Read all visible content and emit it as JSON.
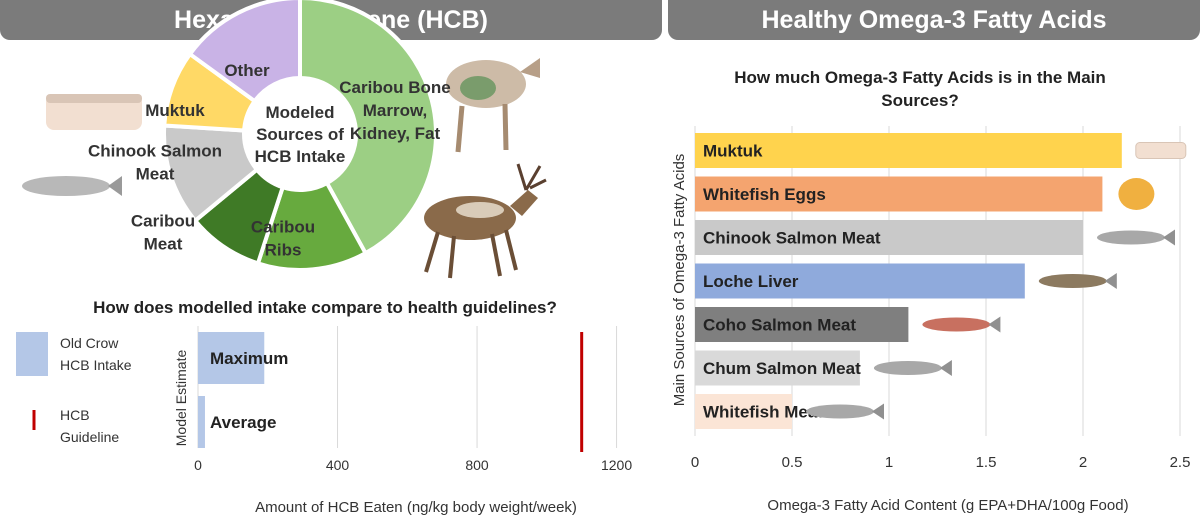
{
  "left_header": "Hexachlorobenzene (HCB)",
  "right_header": "Healthy Omega-3 Fatty Acids",
  "chart_data": [
    {
      "type": "pie",
      "center_label": "Modeled Sources of HCB Intake",
      "slices": [
        {
          "label": "Caribou Bone Marrow, Kidney, Fat",
          "value": 42,
          "color": "#9ccf84"
        },
        {
          "label": "Caribou Ribs",
          "value": 13,
          "color": "#67aa3e"
        },
        {
          "label": "Caribou Meat",
          "value": 9,
          "color": "#3f7a26"
        },
        {
          "label": "Chinook Salmon Meat",
          "value": 12,
          "color": "#c9c9c9"
        },
        {
          "label": "Muktuk",
          "value": 9,
          "color": "#ffd966"
        },
        {
          "label": "Other",
          "value": 15,
          "color": "#c9b3e6"
        }
      ]
    },
    {
      "type": "bar",
      "orientation": "horizontal",
      "title": "How does modelled intake compare to health guidelines?",
      "xlabel": "Amount of HCB Eaten (ng/kg body weight/week)",
      "ylabel": "Model Estimate",
      "xlim": [
        0,
        1250
      ],
      "xticks": [
        0,
        400,
        800,
        1200
      ],
      "categories": [
        "Maximum",
        "Average"
      ],
      "values": [
        190,
        20
      ],
      "bar_color": "#b4c7e7",
      "guideline": 1100,
      "guideline_color": "#c00000",
      "legend": [
        {
          "label": "Old Crow HCB Intake",
          "type": "box",
          "color": "#b4c7e7"
        },
        {
          "label": "HCB Guideline",
          "type": "line",
          "color": "#c00000"
        }
      ],
      "legend_position": "left"
    },
    {
      "type": "bar",
      "orientation": "horizontal",
      "title": "How much Omega-3 Fatty Acids is in the Main Sources?",
      "xlabel": "Omega-3 Fatty Acid Content (g EPA+DHA/100g Food)",
      "ylabel": "Main Sources of Omega-3 Fatty Acids",
      "xlim": [
        0,
        2.5
      ],
      "xticks": [
        "0",
        "0.5",
        "1",
        "1.5",
        "2",
        "2.5"
      ],
      "grid": true,
      "categories": [
        "Muktuk",
        "Whitefish Eggs",
        "Chinook Salmon Meat",
        "Loche Liver",
        "Coho Salmon Meat",
        "Chum Salmon Meat",
        "Whitefish Meat"
      ],
      "values": [
        2.2,
        2.1,
        2.0,
        1.7,
        1.1,
        0.85,
        0.5
      ],
      "colors": [
        "#ffd34d",
        "#f4a46f",
        "#c9c9c9",
        "#8faadc",
        "#7f7f7f",
        "#d9d9d9",
        "#fbe5d6"
      ]
    }
  ]
}
